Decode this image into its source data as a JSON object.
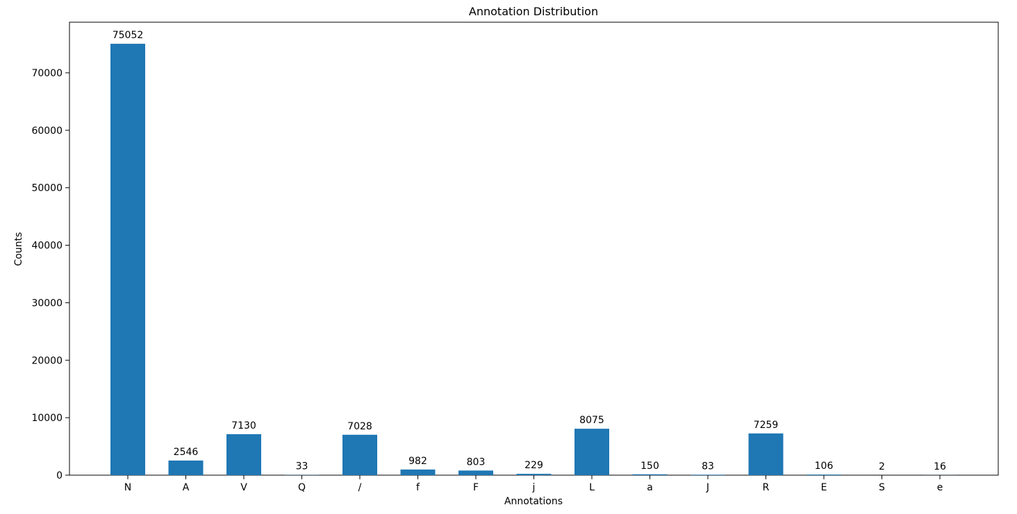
{
  "chart_data": {
    "type": "bar",
    "title": "Annotation Distribution",
    "xlabel": "Annotations",
    "ylabel": "Counts",
    "categories": [
      "N",
      "A",
      "V",
      "Q",
      "/",
      "f",
      "F",
      "j",
      "L",
      "a",
      "J",
      "R",
      "E",
      "S",
      "e"
    ],
    "values": [
      75052,
      2546,
      7130,
      33,
      7028,
      982,
      803,
      229,
      8075,
      150,
      83,
      7259,
      106,
      2,
      16
    ],
    "data_labels": [
      "75052",
      "2546",
      "7130",
      "33",
      "7028",
      "982",
      "803",
      "229",
      "8075",
      "150",
      "83",
      "7259",
      "106",
      "2",
      "16"
    ],
    "yticks": [
      0,
      10000,
      20000,
      30000,
      40000,
      50000,
      60000,
      70000
    ],
    "ytick_labels": [
      "0",
      "10000",
      "20000",
      "30000",
      "40000",
      "50000",
      "60000",
      "70000"
    ],
    "ylim": [
      0,
      78805
    ],
    "grid": false,
    "legend": "none",
    "bar_color": "#1f77b4"
  }
}
